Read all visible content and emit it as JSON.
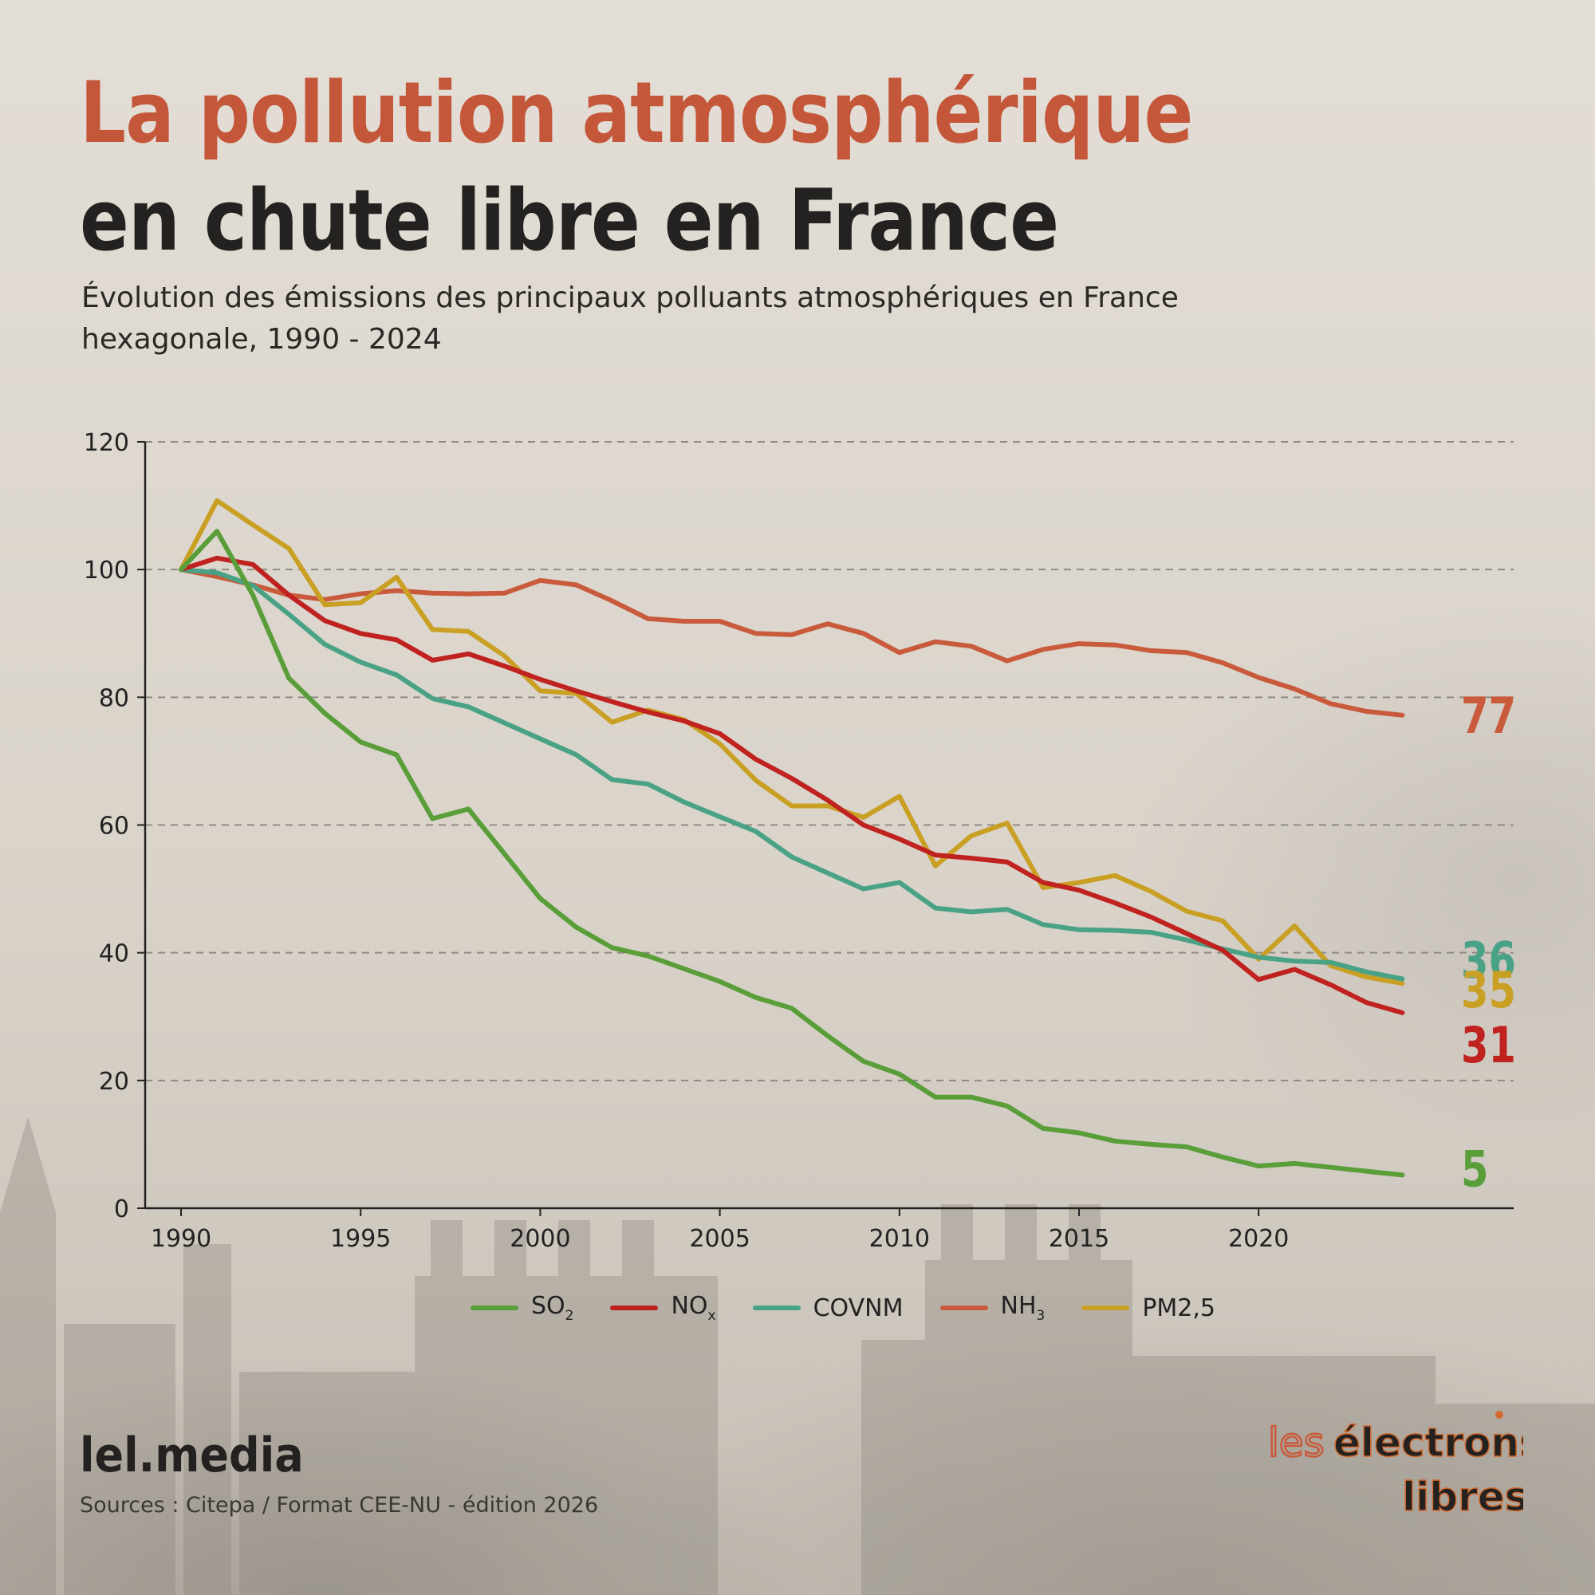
{
  "header": {
    "title_line1": "La pollution atmosphérique",
    "title_line2": "en chute libre en France",
    "subtitle": "Évolution des émissions des principaux polluants atmosphériques en France hexagonale, 1990 - 2024"
  },
  "footer": {
    "brand": "lel.media",
    "source": "Sources : Citepa / Format CEE-NU - édition 2026",
    "logo_text_line1a": "les",
    "logo_text_line1b": "électrons",
    "logo_text_line2": "libres"
  },
  "colors": {
    "title_accent": "#c4573a",
    "SO2": "#5a9e3a",
    "NOx": "#c0221f",
    "COVNM": "#4aa286",
    "NH3": "#c95b3c",
    "PM25": "#c9a024"
  },
  "chart_data": {
    "type": "line",
    "x": [
      1990,
      1991,
      1992,
      1993,
      1994,
      1995,
      1996,
      1997,
      1998,
      1999,
      2000,
      2001,
      2002,
      2003,
      2004,
      2005,
      2006,
      2007,
      2008,
      2009,
      2010,
      2011,
      2012,
      2013,
      2014,
      2015,
      2016,
      2017,
      2018,
      2019,
      2020,
      2021,
      2022,
      2023,
      2024
    ],
    "ylim": [
      0,
      120
    ],
    "yticks": [
      0,
      20,
      40,
      60,
      80,
      100,
      120
    ],
    "xticks": [
      1990,
      1995,
      2000,
      2005,
      2010,
      2015,
      2020
    ],
    "grid": "horizontal dashed",
    "legend_position": "bottom",
    "series": [
      {
        "key": "SO2",
        "name": "SO",
        "sub": "2",
        "color": "#5a9e3a",
        "end_label": "5",
        "values": [
          100,
          106,
          96,
          83,
          77.5,
          73,
          71,
          61,
          62.5,
          55.5,
          48.5,
          44,
          40.8,
          39.5,
          37.5,
          35.5,
          33,
          31.3,
          27,
          23,
          21,
          17.4,
          17.4,
          16,
          12.5,
          11.8,
          10.5,
          10,
          9.6,
          8,
          6.6,
          7,
          6.4,
          5.8,
          5.2
        ]
      },
      {
        "key": "NOx",
        "name": "NO",
        "sub": "x",
        "color": "#c0221f",
        "end_label": "31",
        "values": [
          100,
          101.8,
          100.8,
          96,
          92,
          90,
          89,
          85.8,
          86.8,
          84.9,
          82.8,
          81,
          79.3,
          77.7,
          76.3,
          74.3,
          70.3,
          67.3,
          63.9,
          60,
          57.8,
          55.3,
          54.8,
          54.2,
          51,
          49.8,
          47.8,
          45.6,
          43,
          40.4,
          35.8,
          37.4,
          35,
          32.2,
          30.6
        ]
      },
      {
        "key": "COVNM",
        "name": "COVNM",
        "sub": "",
        "color": "#4aa286",
        "end_label": "36",
        "values": [
          100,
          99.5,
          97.5,
          93,
          88.3,
          85.5,
          83.5,
          79.8,
          78.5,
          76,
          73.5,
          71,
          67.1,
          66.4,
          63.6,
          61.3,
          59,
          55,
          52.5,
          50,
          51,
          47,
          46.4,
          46.8,
          44.4,
          43.6,
          43.5,
          43.2,
          42,
          40.6,
          39.3,
          38.7,
          38.5,
          37,
          35.9
        ]
      },
      {
        "key": "NH3",
        "name": "NH",
        "sub": "3",
        "color": "#c95b3c",
        "end_label": "77",
        "values": [
          100,
          98.9,
          97.6,
          96,
          95.3,
          96.2,
          96.7,
          96.3,
          96.2,
          96.3,
          98.3,
          97.6,
          95.1,
          92.3,
          91.9,
          91.9,
          90,
          89.8,
          91.5,
          90,
          87,
          88.7,
          88,
          85.7,
          87.5,
          88.4,
          88.2,
          87.3,
          87,
          85.4,
          83.1,
          81.3,
          79,
          77.8,
          77.2
        ]
      },
      {
        "key": "PM25",
        "name": "PM2,5",
        "sub": "",
        "color": "#c9a024",
        "end_label": "35",
        "values": [
          100,
          110.8,
          107,
          103.3,
          94.5,
          94.8,
          98.8,
          90.6,
          90.3,
          86.5,
          81,
          80.6,
          76.1,
          78,
          76.5,
          72.7,
          67,
          63,
          63,
          61.2,
          64.5,
          53.6,
          58.3,
          60.3,
          50.2,
          51,
          52.1,
          49.6,
          46.5,
          45,
          39,
          44.2,
          38,
          36.2,
          35.2
        ]
      }
    ]
  }
}
